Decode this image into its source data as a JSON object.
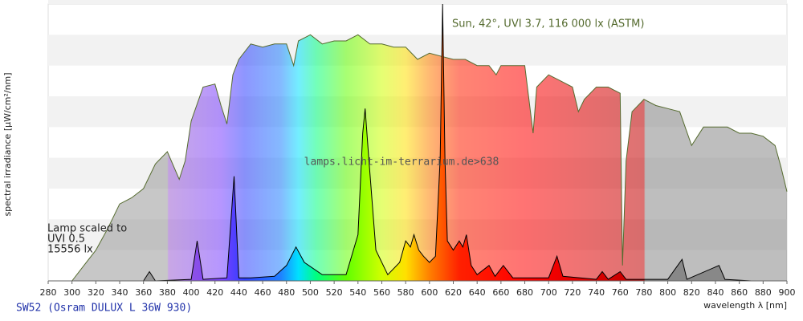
{
  "chart_data": {
    "type": "area",
    "title": "SW52 (Osram DULUX L 36W 930)",
    "watermark": "lamps.licht-im-terrarium.de>638",
    "x_label": "wavelength λ [nm]",
    "y_label": "spectral irradiance [µW/cm²/nm]",
    "annotations": [
      "Sun, 42°, UVI 3.7, 116 000 lx (ASTM)",
      "Lamp scaled to",
      "UVI 0.5",
      "15556 lx"
    ],
    "xlim": [
      280,
      900
    ],
    "xticks": [
      280,
      300,
      320,
      340,
      360,
      380,
      400,
      420,
      440,
      460,
      480,
      500,
      520,
      540,
      560,
      580,
      600,
      620,
      640,
      660,
      680,
      700,
      720,
      740,
      760,
      780,
      800,
      820,
      840,
      860,
      880,
      900
    ],
    "ylim": [
      0,
      9
    ],
    "grid": true,
    "series": [
      {
        "color": "#556b2f",
        "x": [
          300,
          310,
          320,
          330,
          340,
          350,
          360,
          370,
          380,
          390,
          395,
          400,
          410,
          420,
          425,
          430,
          435,
          440,
          450,
          460,
          470,
          480,
          486,
          490,
          500,
          510,
          520,
          530,
          540,
          550,
          560,
          570,
          580,
          590,
          600,
          610,
          620,
          630,
          640,
          650,
          656,
          660,
          670,
          680,
          687,
          690,
          700,
          710,
          720,
          725,
          730,
          740,
          750,
          760,
          762,
          765,
          770,
          780,
          790,
          800,
          810,
          820,
          830,
          840,
          850,
          860,
          870,
          880,
          890,
          895,
          900
        ],
        "values": [
          0,
          0.5,
          1.0,
          1.7,
          2.5,
          2.7,
          3.0,
          3.8,
          4.2,
          3.3,
          3.9,
          5.2,
          6.3,
          6.4,
          5.7,
          5.1,
          6.7,
          7.2,
          7.7,
          7.6,
          7.7,
          7.7,
          7.0,
          7.8,
          8.0,
          7.7,
          7.8,
          7.8,
          8.0,
          7.7,
          7.7,
          7.6,
          7.6,
          7.2,
          7.4,
          7.3,
          7.2,
          7.2,
          7.0,
          7.0,
          6.7,
          7.0,
          7.0,
          7.0,
          4.8,
          6.3,
          6.7,
          6.5,
          6.3,
          5.5,
          5.9,
          6.3,
          6.3,
          6.1,
          0.5,
          3.9,
          5.5,
          5.9,
          5.7,
          5.6,
          5.5,
          4.4,
          5.0,
          5.0,
          5.0,
          4.8,
          4.8,
          4.7,
          4.4,
          3.7,
          2.9
        ]
      },
      {
        "color": "#000000",
        "x": [
          280,
          360,
          365,
          370,
          400,
          405,
          410,
          430,
          436,
          440,
          450,
          470,
          480,
          488,
          495,
          510,
          530,
          540,
          544,
          546,
          549,
          555,
          565,
          575,
          580,
          584,
          587,
          591,
          595,
          600,
          605,
          609,
          611,
          613,
          615,
          620,
          625,
          628,
          631,
          635,
          640,
          650,
          655,
          662,
          670,
          700,
          707,
          712,
          740,
          745,
          750,
          760,
          765,
          800,
          812,
          816,
          843,
          848,
          870,
          900
        ],
        "values": [
          0,
          0,
          0.3,
          0,
          0.05,
          1.3,
          0.05,
          0.1,
          3.4,
          0.1,
          0.1,
          0.15,
          0.5,
          1.1,
          0.6,
          0.2,
          0.2,
          1.5,
          4.8,
          5.6,
          4.0,
          1.0,
          0.2,
          0.6,
          1.3,
          1.1,
          1.5,
          1.0,
          0.8,
          0.6,
          0.8,
          4,
          9.0,
          4,
          1.3,
          1.0,
          1.3,
          1.1,
          1.5,
          0.5,
          0.2,
          0.5,
          0.15,
          0.5,
          0.1,
          0.1,
          0.8,
          0.15,
          0.05,
          0.3,
          0.05,
          0.3,
          0.05,
          0.05,
          0.7,
          0.05,
          0.5,
          0.05,
          0,
          0
        ]
      }
    ]
  }
}
